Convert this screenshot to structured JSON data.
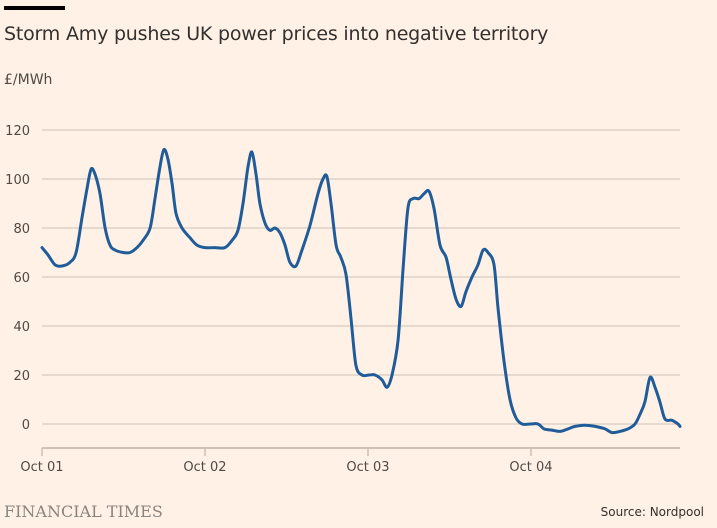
{
  "header": {
    "title": "Storm Amy pushes UK power prices into negative territory",
    "unit": "£/MWh"
  },
  "footer": {
    "logo": "FINANCIAL TIMES",
    "source": "Source: Nordpool"
  },
  "colors": {
    "background": "#fff1e5",
    "line": "#1f5c99",
    "grid": "#ccc1b7",
    "axis": "#9a928c"
  },
  "chart_data": {
    "type": "line",
    "title": "Storm Amy pushes UK power prices into negative territory",
    "xlabel": "",
    "ylabel": "£/MWh",
    "ylim": [
      -10,
      120
    ],
    "yticks": [
      0,
      20,
      40,
      60,
      80,
      100,
      120
    ],
    "xlim_days": [
      0,
      3.91
    ],
    "xticks": [
      {
        "label": "Oct 01",
        "day": 0
      },
      {
        "label": "Oct 02",
        "day": 1
      },
      {
        "label": "Oct 03",
        "day": 2
      },
      {
        "label": "Oct 04",
        "day": 3
      }
    ],
    "grid": true,
    "legend": "none",
    "series": [
      {
        "name": "UK power price",
        "points_day_value": [
          [
            0.0,
            72
          ],
          [
            0.037,
            69
          ],
          [
            0.08,
            65
          ],
          [
            0.123,
            64.5
          ],
          [
            0.172,
            66
          ],
          [
            0.209,
            70
          ],
          [
            0.245,
            84
          ],
          [
            0.276,
            96
          ],
          [
            0.301,
            104
          ],
          [
            0.325,
            102
          ],
          [
            0.356,
            94
          ],
          [
            0.387,
            80
          ],
          [
            0.417,
            73
          ],
          [
            0.448,
            71
          ],
          [
            0.497,
            70
          ],
          [
            0.54,
            70
          ],
          [
            0.583,
            72
          ],
          [
            0.62,
            75
          ],
          [
            0.663,
            80
          ],
          [
            0.693,
            92
          ],
          [
            0.724,
            105
          ],
          [
            0.748,
            112
          ],
          [
            0.773,
            108
          ],
          [
            0.798,
            98
          ],
          [
            0.822,
            86
          ],
          [
            0.859,
            80
          ],
          [
            0.908,
            76
          ],
          [
            0.951,
            73
          ],
          [
            1.0,
            72
          ],
          [
            1.061,
            72
          ],
          [
            1.123,
            72
          ],
          [
            1.166,
            75
          ],
          [
            1.202,
            79
          ],
          [
            1.233,
            90
          ],
          [
            1.264,
            105
          ],
          [
            1.288,
            111
          ],
          [
            1.313,
            102
          ],
          [
            1.337,
            90
          ],
          [
            1.368,
            82
          ],
          [
            1.399,
            79
          ],
          [
            1.429,
            80
          ],
          [
            1.46,
            78
          ],
          [
            1.491,
            73
          ],
          [
            1.521,
            66
          ],
          [
            1.558,
            64.5
          ],
          [
            1.595,
            71
          ],
          [
            1.644,
            81
          ],
          [
            1.693,
            94
          ],
          [
            1.724,
            100
          ],
          [
            1.748,
            101
          ],
          [
            1.773,
            90
          ],
          [
            1.804,
            73
          ],
          [
            1.834,
            68
          ],
          [
            1.865,
            61
          ],
          [
            1.896,
            43
          ],
          [
            1.926,
            24
          ],
          [
            1.963,
            20
          ],
          [
            2.006,
            20
          ],
          [
            2.043,
            20
          ],
          [
            2.086,
            18
          ],
          [
            2.117,
            15
          ],
          [
            2.147,
            20
          ],
          [
            2.184,
            34
          ],
          [
            2.215,
            63
          ],
          [
            2.245,
            88
          ],
          [
            2.276,
            92
          ],
          [
            2.313,
            92
          ],
          [
            2.344,
            94
          ],
          [
            2.374,
            95
          ],
          [
            2.405,
            88
          ],
          [
            2.442,
            73
          ],
          [
            2.479,
            68
          ],
          [
            2.509,
            59
          ],
          [
            2.54,
            51
          ],
          [
            2.571,
            48
          ],
          [
            2.601,
            54
          ],
          [
            2.638,
            60
          ],
          [
            2.675,
            65
          ],
          [
            2.706,
            71
          ],
          [
            2.736,
            70
          ],
          [
            2.773,
            65
          ],
          [
            2.798,
            47
          ],
          [
            2.834,
            26
          ],
          [
            2.871,
            10
          ],
          [
            2.908,
            2.5
          ],
          [
            2.945,
            0
          ],
          [
            2.994,
            0
          ],
          [
            3.043,
            0
          ],
          [
            3.08,
            -2
          ],
          [
            3.129,
            -2.5
          ],
          [
            3.178,
            -3
          ],
          [
            3.227,
            -2
          ],
          [
            3.27,
            -1
          ],
          [
            3.331,
            -0.5
          ],
          [
            3.393,
            -1
          ],
          [
            3.454,
            -2
          ],
          [
            3.497,
            -3.5
          ],
          [
            3.546,
            -3
          ],
          [
            3.595,
            -2
          ],
          [
            3.638,
            0
          ],
          [
            3.669,
            4
          ],
          [
            3.699,
            9
          ],
          [
            3.73,
            19
          ],
          [
            3.761,
            15
          ],
          [
            3.791,
            9
          ],
          [
            3.822,
            2
          ],
          [
            3.865,
            1.5
          ],
          [
            3.902,
            0
          ],
          [
            3.914,
            -1
          ]
        ]
      }
    ]
  }
}
